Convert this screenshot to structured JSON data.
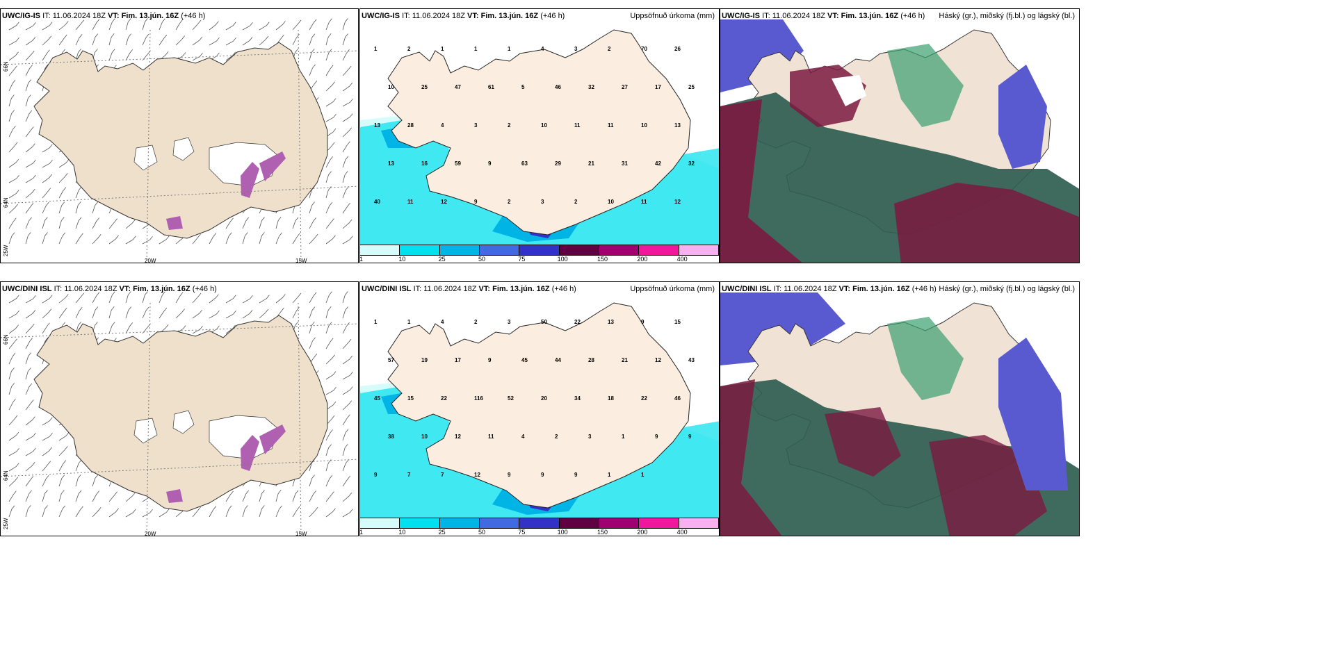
{
  "colors": {
    "land": "#efe0cc",
    "precip_bins": [
      "#d6fbfb",
      "#00e0ee",
      "#00b4e6",
      "#4169e1",
      "#3232c8",
      "#600040",
      "#a00070",
      "#f0179c",
      "#f7b0f0"
    ]
  },
  "legend_ticks": [
    "1",
    "10",
    "25",
    "50",
    "75",
    "100",
    "150",
    "200",
    "400"
  ],
  "rows": [
    {
      "model": "UWC/IG-IS",
      "it": "IT: 11.06.2024 18Z",
      "vt": "VT: Fim. 13.jún. 16Z",
      "lead": "(+46 h)",
      "precip_label": "Uppsöfnuð úrkoma (mm)",
      "cloud_label": "Háský (gr.), miðský (fj.bl.) og lágský (bl.)",
      "lat_labels": [
        "66N",
        "64N"
      ],
      "lon_labels": [
        "25W",
        "20W",
        "15W"
      ],
      "precip_values": [
        "1",
        "2",
        "1",
        "1",
        "1",
        "4",
        "3",
        "2",
        "70",
        "26",
        "10",
        "25",
        "47",
        "61",
        "5",
        "46",
        "32",
        "27",
        "17",
        "25",
        "13",
        "28",
        "4",
        "3",
        "2",
        "10",
        "11",
        "11",
        "10",
        "13",
        "13",
        "16",
        "59",
        "9",
        "63",
        "29",
        "21",
        "31",
        "42",
        "32",
        "40",
        "11",
        "12",
        "9",
        "2",
        "3",
        "2",
        "10",
        "11",
        "12"
      ]
    },
    {
      "model": "UWC/DINI ISL",
      "it": "IT: 11.06.2024 18Z",
      "vt": "VT: Fim. 13.jún. 16Z",
      "lead": "(+46 h)",
      "precip_label": "Uppsöfnuð úrkoma (mm)",
      "cloud_label": "Háský (gr.), miðský (fj.bl.) og lágský (bl.)",
      "lat_labels": [
        "66N",
        "64N"
      ],
      "lon_labels": [
        "25W",
        "20W",
        "15W"
      ],
      "precip_values": [
        "1",
        "1",
        "4",
        "2",
        "3",
        "50",
        "22",
        "13",
        "9",
        "15",
        "57",
        "19",
        "17",
        "9",
        "45",
        "44",
        "28",
        "21",
        "12",
        "43",
        "45",
        "15",
        "22",
        "116",
        "52",
        "20",
        "34",
        "18",
        "22",
        "46",
        "38",
        "10",
        "12",
        "11",
        "4",
        "2",
        "3",
        "1",
        "9",
        "9",
        "9",
        "7",
        "7",
        "12",
        "9",
        "9",
        "9",
        "1",
        "1"
      ]
    }
  ]
}
